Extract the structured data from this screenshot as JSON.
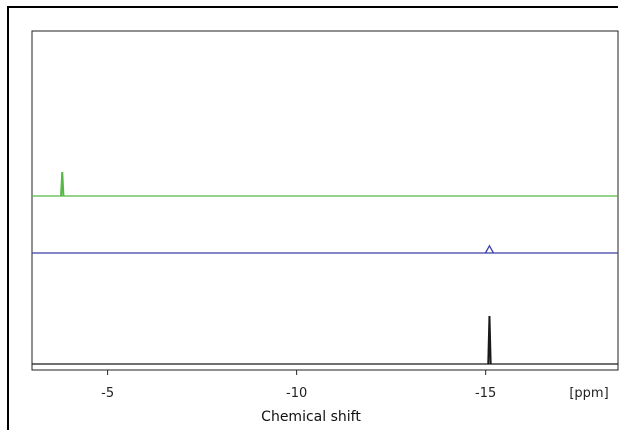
{
  "chart_data": {
    "type": "line",
    "title": "",
    "xlabel": "Chemical shift",
    "x_unit_label": "[ppm]",
    "xlim": [
      -3,
      -18.5
    ],
    "x_ticks": [
      -5,
      -10,
      -15
    ],
    "x_tick_labels": [
      "-5",
      "-10",
      "-15"
    ],
    "grid": false,
    "legend": "none",
    "series": [
      {
        "color": "#56b946",
        "baseline": 1,
        "peaks": [
          {
            "x": -3.8,
            "height": 0.2
          }
        ]
      },
      {
        "color": "#3b3fa6",
        "baseline": 1,
        "peaks": [
          {
            "x": -15.1,
            "height": 0.06
          }
        ]
      },
      {
        "color": "#1a1a1a",
        "baseline": 1,
        "peaks": [
          {
            "x": -15.1,
            "height": 0.4
          }
        ]
      }
    ]
  }
}
